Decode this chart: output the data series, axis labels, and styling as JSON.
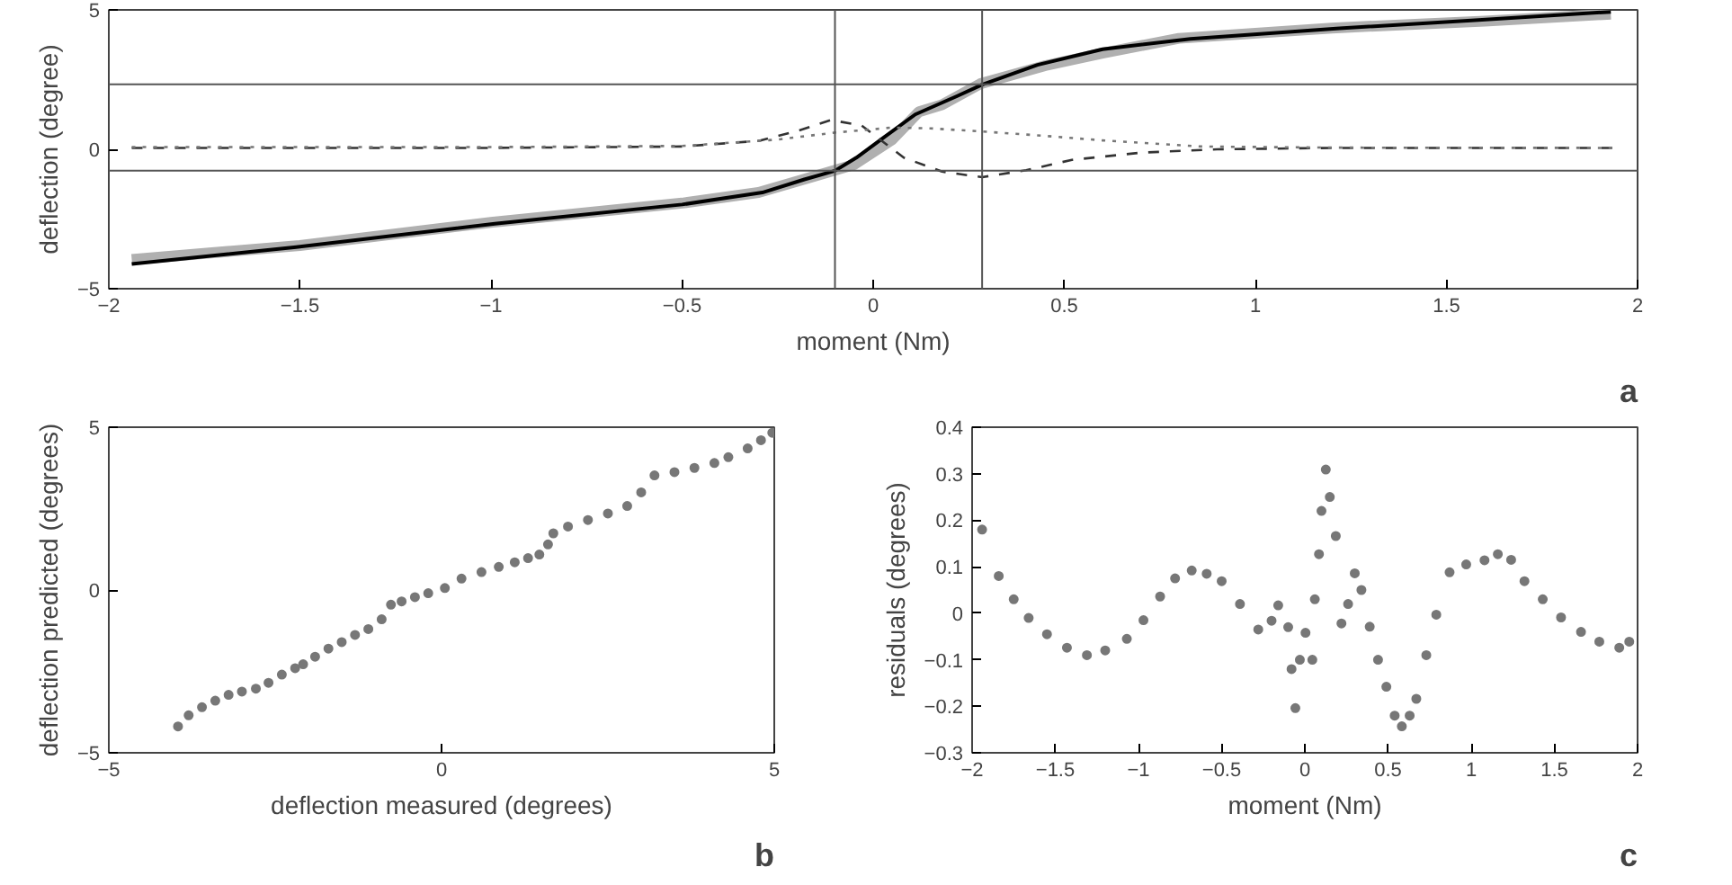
{
  "chart_data": [
    {
      "type": "line",
      "xlabel": "moment (Nm)",
      "ylabel": "deflection (degree)",
      "annotations": [
        "a"
      ],
      "xlim": [
        -2,
        2
      ],
      "xticks": [
        -2,
        -1.5,
        -1,
        -0.5,
        0,
        0.5,
        1,
        1.5,
        2
      ],
      "ylim": [
        -5,
        5
      ],
      "yticks": [
        -5,
        0,
        5
      ],
      "grid": false,
      "marker": "none",
      "ref_lines": [
        {
          "axis": "x",
          "value": -0.1,
          "label": null
        },
        {
          "axis": "x",
          "value": 0.285,
          "label": null
        },
        {
          "axis": "y",
          "value": 2.33,
          "label": null
        },
        {
          "axis": "y",
          "value": -0.77,
          "label": null
        }
      ],
      "series": [
        {
          "color": "#b0b0b0",
          "line_style": "solid",
          "x": [
            -1.94,
            -1.5,
            -1.0,
            -0.5,
            -0.3,
            -0.15,
            -0.05,
            0.05,
            0.12,
            0.18,
            0.28,
            0.45,
            0.6,
            0.8,
            1.2,
            1.6,
            1.93
          ],
          "values": [
            -3.95,
            -3.45,
            -2.62,
            -1.93,
            -1.55,
            -0.95,
            -0.55,
            0.35,
            1.35,
            1.6,
            2.35,
            3.0,
            3.45,
            3.98,
            4.35,
            4.6,
            4.85
          ]
        },
        {
          "color": "#000000",
          "line_style": "solid",
          "x": [
            -1.94,
            -1.51,
            -0.99,
            -0.5,
            -0.29,
            -0.18,
            -0.1,
            -0.044,
            0.026,
            0.11,
            0.22,
            0.285,
            0.43,
            0.6,
            0.83,
            1.22,
            1.565,
            1.93
          ],
          "values": [
            -4.11,
            -3.51,
            -2.67,
            -1.98,
            -1.55,
            -1.08,
            -0.77,
            -0.3,
            0.41,
            1.25,
            1.91,
            2.32,
            3.03,
            3.59,
            3.96,
            4.34,
            4.62,
            4.93
          ]
        },
        {
          "color": "#333333",
          "line_style": "dashed",
          "x": [
            -1.94,
            -1.0,
            -0.5,
            -0.3,
            -0.2,
            -0.11,
            -0.03,
            0.08,
            0.18,
            0.285,
            0.4,
            0.52,
            0.7,
            0.9,
            1.2,
            1.94
          ],
          "values": [
            0.05,
            0.05,
            0.1,
            0.3,
            0.65,
            1.05,
            0.85,
            -0.3,
            -0.8,
            -1.0,
            -0.75,
            -0.38,
            -0.12,
            0.0,
            0.05,
            0.05
          ]
        },
        {
          "color": "#777777",
          "line_style": "dotted",
          "x": [
            -1.94,
            -1.0,
            -0.5,
            -0.25,
            -0.1,
            0.05,
            0.15,
            0.285,
            0.45,
            0.6,
            0.86,
            1.2,
            1.94
          ],
          "values": [
            0.08,
            0.08,
            0.12,
            0.35,
            0.6,
            0.78,
            0.75,
            0.64,
            0.48,
            0.32,
            0.1,
            0.06,
            0.05
          ]
        }
      ]
    },
    {
      "type": "scatter",
      "xlabel": "deflection measured (degrees)",
      "ylabel": "deflection predicted (degrees)",
      "annotations": [
        "b"
      ],
      "xlim": [
        -5,
        5
      ],
      "xticks": [
        -5,
        0,
        5
      ],
      "ylim": [
        -5,
        5
      ],
      "yticks": [
        -5,
        0,
        5
      ],
      "grid": false,
      "marker": "circle",
      "series": [
        {
          "color": "#777777",
          "x": [
            -3.96,
            -3.8,
            -3.6,
            -3.4,
            -3.2,
            -3.0,
            -2.79,
            -2.6,
            -2.4,
            -2.2,
            -2.08,
            -1.9,
            -1.7,
            -1.5,
            -1.3,
            -1.1,
            -0.9,
            -0.76,
            -0.6,
            -0.4,
            -0.2,
            0.05,
            0.3,
            0.6,
            0.86,
            1.1,
            1.3,
            1.47,
            1.6,
            1.68,
            1.9,
            2.2,
            2.5,
            2.79,
            3.0,
            3.2,
            3.5,
            3.8,
            4.1,
            4.31,
            4.6,
            4.8,
            4.97
          ],
          "values": [
            -4.19,
            -3.85,
            -3.6,
            -3.4,
            -3.22,
            -3.12,
            -3.03,
            -2.85,
            -2.6,
            -2.4,
            -2.28,
            -2.05,
            -1.8,
            -1.6,
            -1.38,
            -1.2,
            -0.9,
            -0.45,
            -0.35,
            -0.22,
            -0.1,
            0.06,
            0.35,
            0.55,
            0.71,
            0.85,
            0.98,
            1.09,
            1.4,
            1.74,
            1.95,
            2.15,
            2.35,
            2.58,
            3.0,
            3.52,
            3.62,
            3.75,
            3.9,
            4.08,
            4.35,
            4.6,
            4.83
          ]
        }
      ]
    },
    {
      "type": "scatter",
      "xlabel": "moment (Nm)",
      "ylabel": "residuals (degrees)",
      "annotations": [
        "c"
      ],
      "xlim": [
        -2,
        2
      ],
      "xticks": [
        -2,
        -1.5,
        -1,
        -0.5,
        0,
        0.5,
        1,
        1.5,
        2
      ],
      "ylim": [
        -0.3,
        0.4
      ],
      "yticks": [
        -0.3,
        -0.2,
        -0.1,
        0,
        0.1,
        0.2,
        0.3,
        0.4
      ],
      "grid": false,
      "marker": "circle",
      "series": [
        {
          "color": "#777777",
          "x": [
            -1.94,
            -1.84,
            -1.75,
            -1.66,
            -1.55,
            -1.43,
            -1.31,
            -1.2,
            -1.07,
            -0.97,
            -0.87,
            -0.78,
            -0.68,
            -0.59,
            -0.5,
            -0.39,
            -0.28,
            -0.2,
            -0.16,
            -0.1,
            -0.08,
            -0.057,
            -0.03,
            0.004,
            0.045,
            0.06,
            0.085,
            0.1,
            0.126,
            0.15,
            0.186,
            0.22,
            0.26,
            0.3,
            0.34,
            0.39,
            0.44,
            0.49,
            0.54,
            0.583,
            0.63,
            0.67,
            0.73,
            0.79,
            0.87,
            0.97,
            1.08,
            1.16,
            1.24,
            1.32,
            1.43,
            1.54,
            1.66,
            1.77,
            1.89,
            1.95
          ],
          "values": [
            0.18,
            0.08,
            0.03,
            -0.01,
            -0.045,
            -0.074,
            -0.09,
            -0.08,
            -0.055,
            -0.015,
            0.036,
            0.075,
            0.092,
            0.085,
            0.069,
            0.02,
            -0.035,
            -0.016,
            0.017,
            -0.03,
            -0.12,
            -0.204,
            -0.1,
            -0.042,
            -0.1,
            0.03,
            0.127,
            0.22,
            0.309,
            0.25,
            0.166,
            -0.022,
            0.02,
            0.086,
            0.05,
            -0.029,
            -0.1,
            -0.158,
            -0.22,
            -0.243,
            -0.22,
            -0.184,
            -0.09,
            -0.003,
            0.088,
            0.105,
            0.114,
            0.127,
            0.115,
            0.069,
            0.03,
            -0.009,
            -0.04,
            -0.061,
            -0.074,
            -0.061
          ]
        }
      ]
    }
  ]
}
